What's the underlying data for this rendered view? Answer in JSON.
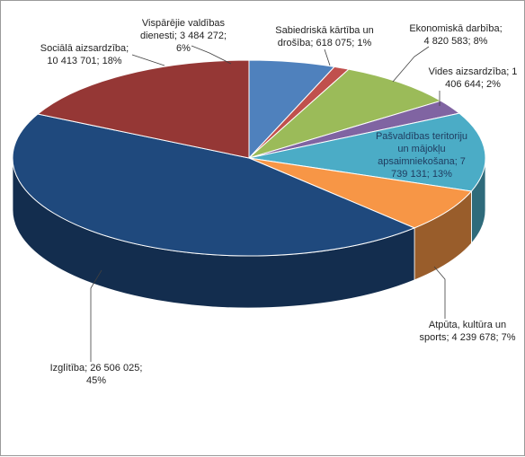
{
  "chart_data": {
    "type": "pie",
    "style": "3d",
    "labels": [
      {
        "text": "Vispārējie valdības\ndienesti; 3 484 272;\n6%"
      },
      {
        "text": "Sabiedriskā kārtība un\ndrošība; 618 075; 1%"
      },
      {
        "text": "Ekonomiskā darbība;\n4 820 583; 8%"
      },
      {
        "text": "Vides aizsardzība; 1\n406 644; 2%"
      },
      {
        "text": "Pašvaldības teritoriju\nun mājokļu\napsaimniekošana; 7\n739 131; 13%"
      },
      {
        "text": "Atpūta, kultūra un\nsports; 4 239 678; 7%"
      },
      {
        "text": "Izglītība; 26 506 025;\n45%"
      },
      {
        "text": "Sociālā aizsardzība;\n10 413 701; 18%"
      }
    ],
    "slices": [
      {
        "category": "Vispārējie valdības dienesti",
        "value": 3484272,
        "percent": 6,
        "color": "#4f81bd"
      },
      {
        "category": "Sabiedriskā kārtība un drošība",
        "value": 618075,
        "percent": 1,
        "color": "#c0504d"
      },
      {
        "category": "Ekonomiskā darbība",
        "value": 4820583,
        "percent": 8,
        "color": "#9bbb59"
      },
      {
        "category": "Vides aizsardzība",
        "value": 1406644,
        "percent": 2,
        "color": "#8064a2"
      },
      {
        "category": "Pašvaldības teritoriju un mājokļu apsaimniekošana",
        "value": 7739131,
        "percent": 13,
        "color": "#4bacc6"
      },
      {
        "category": "Atpūta, kultūra un sports",
        "value": 4239678,
        "percent": 7,
        "color": "#f79646"
      },
      {
        "category": "Izglītība",
        "value": 26506025,
        "percent": 45,
        "color": "#1f497d"
      },
      {
        "category": "Sociālā aizsardzība",
        "value": 10413701,
        "percent": 18,
        "color": "#953735"
      }
    ]
  }
}
